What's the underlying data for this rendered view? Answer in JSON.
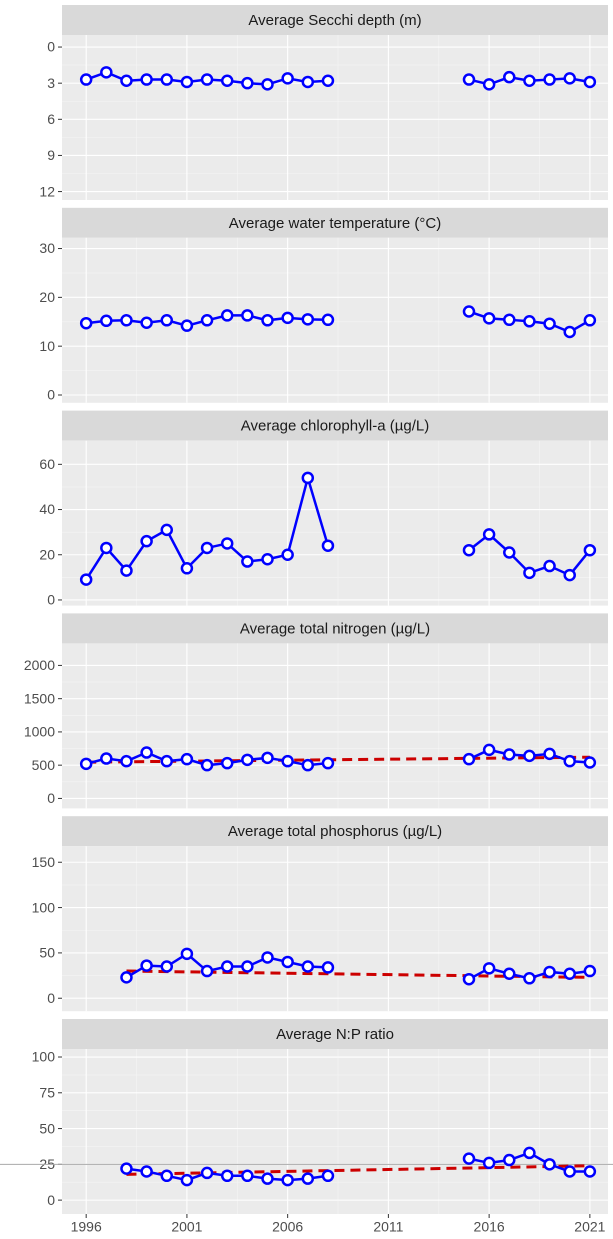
{
  "chart_data": [
    {
      "type": "line",
      "title": "Average Secchi depth (m)",
      "reverse_y": true,
      "xlim": [
        1994.8,
        2021.9
      ],
      "xticks": [
        1996,
        2001,
        2006,
        2011,
        2016,
        2021
      ],
      "ylim": [
        -1.0,
        12.7
      ],
      "yticks": [
        0,
        3,
        6,
        9,
        12
      ],
      "series": [
        {
          "color": "#0000ff",
          "x": [
            1996,
            1997,
            1998,
            1999,
            2000,
            2001,
            2002,
            2003,
            2004,
            2005,
            2006,
            2007,
            2008,
            2009,
            2010,
            2011,
            2012,
            2013,
            2014,
            2015,
            2016,
            2017,
            2018,
            2019,
            2020,
            2021
          ],
          "values": [
            2.7,
            2.1,
            2.8,
            2.7,
            2.7,
            2.9,
            2.7,
            2.8,
            3.0,
            3.1,
            2.6,
            2.9,
            2.8,
            null,
            null,
            null,
            null,
            null,
            null,
            2.7,
            3.1,
            2.5,
            2.8,
            2.7,
            2.6,
            2.9
          ]
        }
      ]
    },
    {
      "type": "line",
      "title": "Average water temperature (°C)",
      "xlim": [
        1994.8,
        2021.9
      ],
      "xticks": [
        1996,
        2001,
        2006,
        2011,
        2016,
        2021
      ],
      "ylim": [
        -1.6,
        32.2
      ],
      "yticks": [
        0,
        10,
        20,
        30
      ],
      "series": [
        {
          "color": "#0000ff",
          "x": [
            1996,
            1997,
            1998,
            1999,
            2000,
            2001,
            2002,
            2003,
            2004,
            2005,
            2006,
            2007,
            2008,
            2009,
            2010,
            2011,
            2012,
            2013,
            2014,
            2015,
            2016,
            2017,
            2018,
            2019,
            2020,
            2021
          ],
          "values": [
            14.7,
            15.2,
            15.3,
            14.8,
            15.3,
            14.2,
            15.3,
            16.3,
            16.3,
            15.3,
            15.8,
            15.5,
            15.4,
            null,
            null,
            null,
            null,
            null,
            null,
            17.1,
            15.7,
            15.4,
            15.1,
            14.6,
            12.9,
            15.3
          ]
        }
      ]
    },
    {
      "type": "line",
      "title": "Average chlorophyll-a (µg/L)",
      "xlim": [
        1994.8,
        2021.9
      ],
      "xticks": [
        1996,
        2001,
        2006,
        2011,
        2016,
        2021
      ],
      "ylim": [
        -2.5,
        70.5
      ],
      "yticks": [
        0,
        20,
        40,
        60
      ],
      "series": [
        {
          "color": "#0000ff",
          "x": [
            1996,
            1997,
            1998,
            1999,
            2000,
            2001,
            2002,
            2003,
            2004,
            2005,
            2006,
            2007,
            2008,
            2009,
            2010,
            2011,
            2012,
            2013,
            2014,
            2015,
            2016,
            2017,
            2018,
            2019,
            2020,
            2021
          ],
          "values": [
            9,
            23,
            13,
            26,
            31,
            14,
            23,
            25,
            17,
            18,
            20,
            54,
            24,
            null,
            null,
            null,
            null,
            null,
            null,
            22,
            29,
            21,
            12,
            15,
            11,
            22
          ]
        }
      ]
    },
    {
      "type": "line",
      "title": "Average total nitrogen (µg/L)",
      "xlim": [
        1994.8,
        2021.9
      ],
      "xticks": [
        1996,
        2001,
        2006,
        2011,
        2016,
        2021
      ],
      "ylim": [
        -150,
        2331
      ],
      "yticks": [
        0,
        500,
        1000,
        1500,
        2000
      ],
      "series": [
        {
          "color": "#0000ff",
          "x": [
            1996,
            1997,
            1998,
            1999,
            2000,
            2001,
            2002,
            2003,
            2004,
            2005,
            2006,
            2007,
            2008,
            2009,
            2010,
            2011,
            2012,
            2013,
            2014,
            2015,
            2016,
            2017,
            2018,
            2019,
            2020,
            2021
          ],
          "values": [
            520,
            600,
            560,
            690,
            560,
            590,
            500,
            530,
            580,
            610,
            560,
            500,
            530,
            null,
            null,
            null,
            null,
            null,
            null,
            590,
            730,
            660,
            640,
            670,
            560,
            540
          ]
        }
      ],
      "trend": {
        "color": "#cc0000",
        "x": [
          1996,
          2021
        ],
        "values": [
          545,
          620
        ]
      }
    },
    {
      "type": "line",
      "title": "Average total phosphorus (µg/L)",
      "xlim": [
        1994.8,
        2021.9
      ],
      "xticks": [
        1996,
        2001,
        2006,
        2011,
        2016,
        2021
      ],
      "ylim": [
        -14.3,
        167.7
      ],
      "yticks": [
        0,
        50,
        100,
        150
      ],
      "series": [
        {
          "color": "#0000ff",
          "x": [
            1998,
            1999,
            2000,
            2001,
            2002,
            2003,
            2004,
            2005,
            2006,
            2007,
            2008,
            2009,
            2010,
            2011,
            2012,
            2013,
            2014,
            2015,
            2016,
            2017,
            2018,
            2019,
            2020,
            2021
          ],
          "values": [
            23,
            36,
            35,
            49,
            30,
            35,
            35,
            45,
            40,
            35,
            34,
            null,
            null,
            null,
            null,
            null,
            null,
            21,
            33,
            27,
            22,
            29,
            27,
            30
          ]
        }
      ],
      "trend": {
        "color": "#cc0000",
        "x": [
          1998,
          2021
        ],
        "values": [
          30,
          23
        ]
      }
    },
    {
      "type": "line",
      "title": "Average N:P ratio",
      "xlim": [
        1994.8,
        2021.9
      ],
      "xticks": [
        1996,
        2001,
        2006,
        2011,
        2016,
        2021
      ],
      "ylim": [
        -9.7,
        105.6
      ],
      "yticks": [
        0,
        25,
        50,
        75,
        100
      ],
      "hline": 25,
      "series": [
        {
          "color": "#0000ff",
          "x": [
            1998,
            1999,
            2000,
            2001,
            2002,
            2003,
            2004,
            2005,
            2006,
            2007,
            2008,
            2009,
            2010,
            2011,
            2012,
            2013,
            2014,
            2015,
            2016,
            2017,
            2018,
            2019,
            2020,
            2021
          ],
          "values": [
            22,
            20,
            17,
            14,
            19,
            17,
            17,
            15,
            14,
            15,
            17,
            null,
            null,
            null,
            null,
            null,
            null,
            29,
            26,
            28,
            33,
            25,
            20,
            20
          ]
        }
      ],
      "trend": {
        "color": "#cc0000",
        "x": [
          1998,
          2021
        ],
        "values": [
          18,
          24
        ]
      }
    }
  ]
}
